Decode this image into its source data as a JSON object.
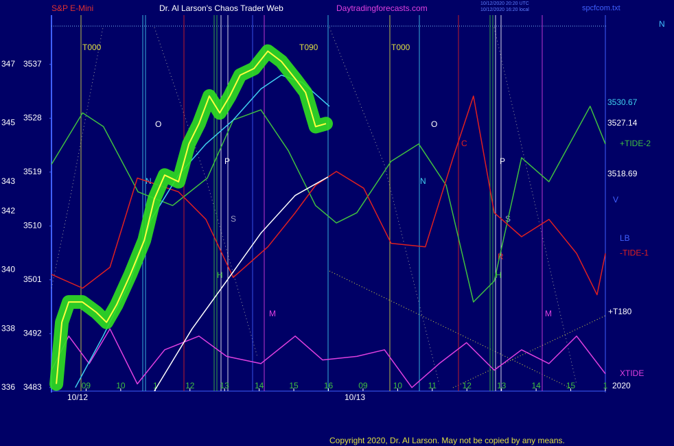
{
  "chart_data": {
    "type": "line",
    "header": [
      "S&P E-Mini",
      "Dr. Al Larson's Chaos Trader Web",
      "Daytradingforecasts.com"
    ],
    "file_label": "spcfcom.txt",
    "corner_label": "N",
    "timestamps": [
      "10/12/2020 20:20 UTC",
      "10/12/2020 16:20 local"
    ],
    "price_labels": [
      "3530.67",
      "3527.14",
      "3518.69"
    ],
    "annotations": [
      "T000",
      "T090",
      "T000",
      "O",
      "O",
      "P",
      "P",
      "N",
      "N",
      "S",
      "S",
      "H",
      "H",
      "M",
      "M",
      "C",
      "R",
      "10/12",
      "10/13",
      "V",
      "LB",
      "2020",
      "+T180"
    ],
    "copyright": "Copyright 2020, Dr. Al Larson. May not be copied by any means.",
    "xlim": [
      0,
      16
    ],
    "xticks": [
      {
        "value": 1,
        "label": "09"
      },
      {
        "value": 2,
        "label": "10"
      },
      {
        "value": 3,
        "label": "1"
      },
      {
        "value": 4,
        "label": "12"
      },
      {
        "value": 5,
        "label": "13"
      },
      {
        "value": 6,
        "label": "14"
      },
      {
        "value": 7,
        "label": "15"
      },
      {
        "value": 8,
        "label": "16"
      },
      {
        "value": 9,
        "label": "09"
      },
      {
        "value": 10,
        "label": "10"
      },
      {
        "value": 11,
        "label": "11"
      },
      {
        "value": 12,
        "label": "12"
      },
      {
        "value": 13,
        "label": "13"
      },
      {
        "value": 14,
        "label": "14"
      },
      {
        "value": 15,
        "label": "15"
      },
      {
        "value": 16,
        "label": "1"
      }
    ],
    "ylim": [
      3482.4,
      3543.4
    ],
    "yticks": [
      3483,
      3492,
      3501,
      3510,
      3519,
      3528,
      3537
    ],
    "y2lim": [
      335.88,
      348.3
    ],
    "y2ticks": [
      336,
      338,
      340,
      342,
      343,
      345,
      347
    ],
    "grid": false,
    "series": [
      {
        "name": "+TIDE-2",
        "color": "#40c040",
        "x": [
          0,
          0.9,
          1.5,
          2.5,
          3.5,
          4.5,
          5.25,
          6.05,
          6.84,
          7.63,
          8.23,
          8.82,
          9.81,
          10.61,
          11.4,
          12.19,
          12.79,
          13.58,
          14.37,
          15.56,
          16
        ],
        "values": [
          3520.3,
          3528.9,
          3526.6,
          3515.7,
          3513.4,
          3518.0,
          3527.7,
          3529.4,
          3522.6,
          3513.4,
          3510.5,
          3512.2,
          3520.8,
          3523.7,
          3516.8,
          3497.3,
          3500.8,
          3521.4,
          3517.4,
          3530.0,
          3523.7
        ]
      },
      {
        "name": "-TIDE-1",
        "color": "#e02020",
        "x": [
          0,
          0.9,
          1.69,
          2.48,
          3.67,
          4.46,
          5.25,
          6.25,
          7.04,
          7.63,
          8.23,
          9.02,
          9.81,
          10.8,
          11.6,
          12.19,
          12.79,
          13.58,
          14.37,
          15.17,
          15.76,
          16
        ],
        "values": [
          3501.9,
          3499.6,
          3503.1,
          3518.0,
          3515.7,
          3511.1,
          3501.4,
          3506.5,
          3512.2,
          3516.8,
          3519.1,
          3516.3,
          3507.1,
          3506.5,
          3521.4,
          3531.7,
          3512.2,
          3508.2,
          3511.1,
          3505.4,
          3498.5,
          3505.4
        ]
      },
      {
        "name": "XTIDE",
        "color": "#e040e0",
        "x": [
          0,
          0.5,
          1.09,
          1.69,
          2.48,
          3.27,
          4.26,
          5.06,
          6.05,
          7.04,
          7.83,
          8.82,
          9.62,
          10.41,
          11.2,
          11.99,
          12.79,
          13.58,
          14.37,
          15.17,
          16
        ],
        "values": [
          3485.9,
          3491.6,
          3487.0,
          3492.8,
          3483.6,
          3489.3,
          3491.6,
          3488.2,
          3487.0,
          3491.6,
          3487.6,
          3488.2,
          3489.3,
          3483.0,
          3487.0,
          3490.5,
          3485.9,
          3489.3,
          3487.0,
          3491.6,
          3485.3
        ]
      },
      {
        "color": "#ffffff",
        "x": [
          2.97,
          4.06,
          5.06,
          6.05,
          7.04,
          7.99
        ],
        "values": [
          3482.4,
          3492.8,
          3500.8,
          3508.8,
          3515.1,
          3518.2
        ]
      },
      {
        "color": "#40d0f0",
        "x": [
          0.69,
          1.49,
          2.28,
          2.88,
          3.67,
          4.46,
          5.25,
          6.05,
          6.64,
          7.24,
          8.03
        ],
        "values": [
          3483.0,
          3491.6,
          3500.8,
          3511.1,
          3518.5,
          3523.7,
          3527.7,
          3532.9,
          3535.2,
          3534.0,
          3530.0
        ]
      },
      {
        "color": "#ffff40",
        "glow": "#30e020",
        "x": [
          0.14,
          0.3,
          0.5,
          0.89,
          1.29,
          1.59,
          1.88,
          2.28,
          2.68,
          2.97,
          3.27,
          3.67,
          3.97,
          4.26,
          4.56,
          4.86,
          5.15,
          5.45,
          5.85,
          6.25,
          6.64,
          7.04,
          7.34,
          7.63,
          7.93
        ],
        "values": [
          3483.6,
          3493.9,
          3497.3,
          3497.3,
          3495.6,
          3493.9,
          3496.8,
          3501.9,
          3507.6,
          3514.5,
          3518.5,
          3517.4,
          3523.7,
          3527.1,
          3531.7,
          3528.9,
          3531.7,
          3535.2,
          3536.3,
          3539.2,
          3537.5,
          3534.6,
          3532.3,
          3526.6,
          3527.1
        ]
      }
    ]
  }
}
